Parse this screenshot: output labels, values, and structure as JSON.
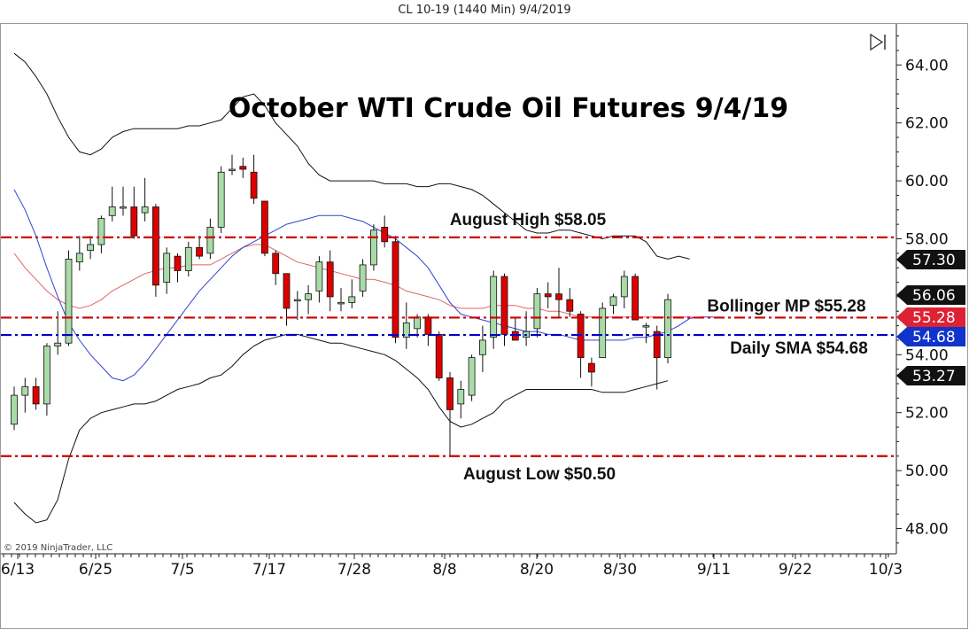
{
  "window_title": "CL 10-19 (1440 Min)  9/4/2019",
  "copyright": "© 2019 NinjaTrader, LLC",
  "colors": {
    "up": "#a8dba8",
    "down": "#dd0000",
    "bb_outer": "#111111",
    "bb_mid": "#dd6666",
    "sma": "#3344cc",
    "red_line": "#cc0000",
    "blue_line": "#0000cc",
    "tag_dark": "#111111",
    "tag_red": "#dd2233",
    "tag_blue": "#1133cc"
  },
  "chart_data": {
    "type": "candlestick",
    "title": "October WTI Crude Oil Futures 9/4/19",
    "ylim": [
      47.0,
      65.3
    ],
    "y_ticks": [
      "48.00",
      "50.00",
      "52.00",
      "54.00",
      "56.00",
      "58.00",
      "60.00",
      "62.00",
      "64.00"
    ],
    "x_ticks": [
      "6/13",
      "6/25",
      "7/5",
      "7/17",
      "7/28",
      "8/8",
      "8/20",
      "8/30",
      "9/11",
      "9/22",
      "10/3"
    ],
    "candles": [
      {
        "o": 51.6,
        "h": 52.9,
        "l": 51.4,
        "c": 52.6
      },
      {
        "o": 52.6,
        "h": 53.2,
        "l": 52.0,
        "c": 52.9
      },
      {
        "o": 52.9,
        "h": 53.2,
        "l": 52.1,
        "c": 52.3
      },
      {
        "o": 52.3,
        "h": 54.4,
        "l": 51.9,
        "c": 54.3
      },
      {
        "o": 54.3,
        "h": 55.5,
        "l": 54.0,
        "c": 54.4
      },
      {
        "o": 54.4,
        "h": 57.6,
        "l": 54.3,
        "c": 57.3
      },
      {
        "o": 57.2,
        "h": 58.1,
        "l": 56.9,
        "c": 57.5
      },
      {
        "o": 57.6,
        "h": 58.1,
        "l": 57.3,
        "c": 57.8
      },
      {
        "o": 57.8,
        "h": 58.8,
        "l": 57.5,
        "c": 58.7
      },
      {
        "o": 58.8,
        "h": 59.8,
        "l": 58.6,
        "c": 59.1
      },
      {
        "o": 59.1,
        "h": 59.8,
        "l": 58.8,
        "c": 59.1
      },
      {
        "o": 59.1,
        "h": 59.8,
        "l": 58.0,
        "c": 58.1
      },
      {
        "o": 58.9,
        "h": 60.1,
        "l": 58.6,
        "c": 59.1
      },
      {
        "o": 59.1,
        "h": 59.2,
        "l": 56.0,
        "c": 56.4
      },
      {
        "o": 56.5,
        "h": 57.7,
        "l": 56.1,
        "c": 57.5
      },
      {
        "o": 57.4,
        "h": 57.5,
        "l": 56.5,
        "c": 56.9
      },
      {
        "o": 56.9,
        "h": 57.9,
        "l": 56.7,
        "c": 57.7
      },
      {
        "o": 57.7,
        "h": 58.1,
        "l": 57.3,
        "c": 57.4
      },
      {
        "o": 57.5,
        "h": 58.7,
        "l": 57.3,
        "c": 58.4
      },
      {
        "o": 58.4,
        "h": 60.5,
        "l": 58.2,
        "c": 60.3
      },
      {
        "o": 60.4,
        "h": 60.9,
        "l": 60.2,
        "c": 60.4
      },
      {
        "o": 60.5,
        "h": 60.8,
        "l": 60.1,
        "c": 60.4
      },
      {
        "o": 60.3,
        "h": 60.9,
        "l": 59.2,
        "c": 59.4
      },
      {
        "o": 59.3,
        "h": 59.3,
        "l": 57.4,
        "c": 57.5
      },
      {
        "o": 57.5,
        "h": 57.6,
        "l": 56.4,
        "c": 56.8
      },
      {
        "o": 56.8,
        "h": 56.8,
        "l": 55.0,
        "c": 55.6
      },
      {
        "o": 55.9,
        "h": 56.2,
        "l": 55.2,
        "c": 55.9
      },
      {
        "o": 55.9,
        "h": 56.4,
        "l": 55.4,
        "c": 56.1
      },
      {
        "o": 56.2,
        "h": 57.4,
        "l": 55.8,
        "c": 57.2
      },
      {
        "o": 57.2,
        "h": 57.6,
        "l": 55.5,
        "c": 56.0
      },
      {
        "o": 55.8,
        "h": 56.3,
        "l": 55.5,
        "c": 55.8
      },
      {
        "o": 55.8,
        "h": 56.6,
        "l": 55.6,
        "c": 56.0
      },
      {
        "o": 56.2,
        "h": 57.3,
        "l": 56.0,
        "c": 57.1
      },
      {
        "o": 57.1,
        "h": 58.5,
        "l": 56.9,
        "c": 58.3
      },
      {
        "o": 58.4,
        "h": 58.8,
        "l": 57.7,
        "c": 57.9
      },
      {
        "o": 57.9,
        "h": 58.1,
        "l": 54.4,
        "c": 54.6
      },
      {
        "o": 54.6,
        "h": 55.8,
        "l": 54.2,
        "c": 55.1
      },
      {
        "o": 54.9,
        "h": 55.4,
        "l": 54.6,
        "c": 55.3
      },
      {
        "o": 55.3,
        "h": 55.4,
        "l": 54.3,
        "c": 54.7
      },
      {
        "o": 54.7,
        "h": 54.8,
        "l": 53.1,
        "c": 53.2
      },
      {
        "o": 53.2,
        "h": 53.4,
        "l": 50.5,
        "c": 52.1
      },
      {
        "o": 52.3,
        "h": 53.1,
        "l": 51.8,
        "c": 52.8
      },
      {
        "o": 52.6,
        "h": 54.0,
        "l": 52.4,
        "c": 53.9
      },
      {
        "o": 54.0,
        "h": 55.0,
        "l": 53.4,
        "c": 54.5
      },
      {
        "o": 54.6,
        "h": 56.9,
        "l": 54.2,
        "c": 56.7
      },
      {
        "o": 56.7,
        "h": 56.8,
        "l": 54.3,
        "c": 54.7
      },
      {
        "o": 54.8,
        "h": 55.3,
        "l": 54.5,
        "c": 54.5
      },
      {
        "o": 54.6,
        "h": 55.5,
        "l": 54.3,
        "c": 54.8
      },
      {
        "o": 54.9,
        "h": 56.3,
        "l": 54.6,
        "c": 56.1
      },
      {
        "o": 56.1,
        "h": 56.5,
        "l": 55.6,
        "c": 56.0
      },
      {
        "o": 56.1,
        "h": 57.0,
        "l": 55.3,
        "c": 55.9
      },
      {
        "o": 55.9,
        "h": 56.3,
        "l": 55.3,
        "c": 55.5
      },
      {
        "o": 55.4,
        "h": 55.5,
        "l": 53.2,
        "c": 53.9
      },
      {
        "o": 53.7,
        "h": 53.9,
        "l": 52.9,
        "c": 53.4
      },
      {
        "o": 53.9,
        "h": 55.8,
        "l": 53.9,
        "c": 55.6
      },
      {
        "o": 55.7,
        "h": 56.1,
        "l": 55.4,
        "c": 56.0
      },
      {
        "o": 56.0,
        "h": 56.9,
        "l": 55.6,
        "c": 56.7
      },
      {
        "o": 56.7,
        "h": 56.8,
        "l": 55.2,
        "c": 55.2
      },
      {
        "o": 55.0,
        "h": 55.1,
        "l": 54.4,
        "c": 55.0
      },
      {
        "o": 54.8,
        "h": 55.0,
        "l": 52.8,
        "c": 53.9
      },
      {
        "o": 53.9,
        "h": 56.1,
        "l": 53.7,
        "c": 55.9
      }
    ],
    "bollinger_upper": [
      64.4,
      64.1,
      63.6,
      63.0,
      62.2,
      61.5,
      61.0,
      60.9,
      61.1,
      61.5,
      61.7,
      61.8,
      61.8,
      61.8,
      61.8,
      61.8,
      61.9,
      61.9,
      62.0,
      62.1,
      62.5,
      62.9,
      63.0,
      62.6,
      62.0,
      61.6,
      61.2,
      60.6,
      60.2,
      60.0,
      60.0,
      60.0,
      60.0,
      60.0,
      59.9,
      59.9,
      59.9,
      59.8,
      59.8,
      59.9,
      59.9,
      59.8,
      59.7,
      59.5,
      59.2,
      58.9,
      58.6,
      58.3,
      58.2,
      58.2,
      58.3,
      58.3,
      58.2,
      58.1,
      58.0,
      58.1,
      58.1,
      58.1,
      57.9,
      57.4,
      57.3
    ],
    "bollinger_mid": [
      57.5,
      57.0,
      56.6,
      56.2,
      55.9,
      55.7,
      55.6,
      55.7,
      55.9,
      56.2,
      56.4,
      56.6,
      56.8,
      56.9,
      57.0,
      57.0,
      57.1,
      57.1,
      57.1,
      57.3,
      57.5,
      57.7,
      57.8,
      57.8,
      57.6,
      57.4,
      57.2,
      57.1,
      57.0,
      56.9,
      56.8,
      56.7,
      56.6,
      56.6,
      56.5,
      56.4,
      56.2,
      56.1,
      56.0,
      55.9,
      55.7,
      55.6,
      55.6,
      55.6,
      55.7,
      55.7,
      55.7,
      55.6,
      55.6,
      55.5,
      55.5,
      55.4,
      55.3,
      55.3,
      55.3,
      55.3,
      55.3,
      55.3,
      55.3,
      55.3,
      55.3
    ],
    "sma": [
      59.7,
      59.0,
      58.1,
      57.0,
      56.0,
      55.1,
      54.5,
      54.0,
      53.6,
      53.2,
      53.1,
      53.3,
      53.7,
      54.2,
      54.7,
      55.2,
      55.7,
      56.2,
      56.6,
      57.0,
      57.4,
      57.7,
      57.9,
      58.1,
      58.3,
      58.5,
      58.6,
      58.7,
      58.8,
      58.8,
      58.8,
      58.7,
      58.6,
      58.4,
      58.2,
      58.0,
      57.7,
      57.4,
      57.0,
      56.4,
      55.8,
      55.4,
      55.3,
      55.2,
      55.1,
      55.0,
      54.9,
      54.8,
      54.8,
      54.7,
      54.7,
      54.6,
      54.5,
      54.5,
      54.5,
      54.5,
      54.5,
      54.6,
      54.6,
      54.7,
      54.8
    ],
    "bollinger_lower": [
      48.9,
      48.5,
      48.2,
      48.3,
      49.0,
      50.4,
      51.4,
      51.8,
      52.0,
      52.1,
      52.2,
      52.3,
      52.3,
      52.4,
      52.6,
      52.8,
      52.9,
      53.0,
      53.2,
      53.3,
      53.6,
      54.0,
      54.3,
      54.5,
      54.6,
      54.7,
      54.7,
      54.6,
      54.5,
      54.4,
      54.4,
      54.3,
      54.2,
      54.1,
      54.0,
      53.8,
      53.5,
      53.2,
      52.8,
      52.2,
      51.7,
      51.5,
      51.6,
      51.8,
      52.0,
      52.4,
      52.6,
      52.8,
      52.8,
      52.8,
      52.8,
      52.8,
      52.8,
      52.8,
      52.7,
      52.7,
      52.7,
      52.8,
      52.9,
      53.0,
      53.1
    ],
    "projection_upper": [
      57.4,
      57.3
    ],
    "projection_mid": [
      55.3,
      55.3,
      55.28
    ],
    "horizontal_lines": [
      {
        "label": "August High $58.05",
        "value": 58.05,
        "style": "red"
      },
      {
        "label": "Bollinger MP $55.28",
        "value": 55.28,
        "style": "red"
      },
      {
        "label": "Daily SMA $54.68",
        "value": 54.68,
        "style": "blue"
      },
      {
        "label": "August Low $50.50",
        "value": 50.5,
        "style": "red"
      }
    ],
    "price_tags": [
      {
        "text": "57.30",
        "value": 57.3,
        "color": "dark"
      },
      {
        "text": "56.06",
        "value": 56.06,
        "color": "dark"
      },
      {
        "text": "55.28",
        "value": 55.28,
        "color": "red"
      },
      {
        "text": "54.68",
        "value": 54.68,
        "color": "blue"
      },
      {
        "text": "53.27",
        "value": 53.27,
        "color": "dark"
      }
    ]
  }
}
